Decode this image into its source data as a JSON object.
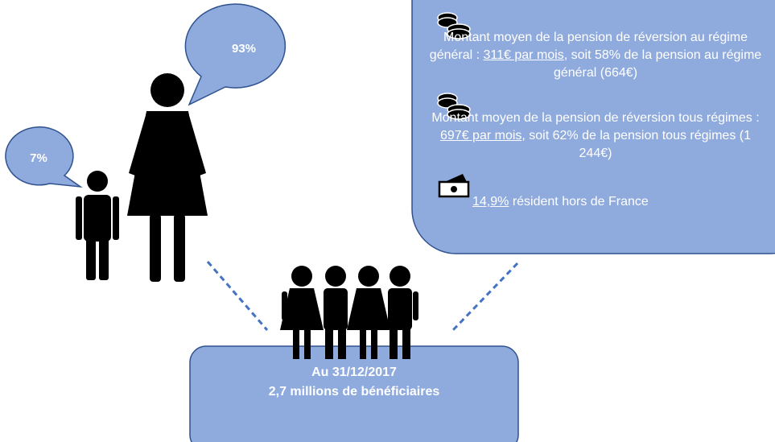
{
  "bubbles": [
    {
      "label": "93%"
    },
    {
      "label": "7%"
    }
  ],
  "info": {
    "items": [
      {
        "parts": [
          {
            "text": "Montant moyen de la pension de réversion au régime général : "
          },
          {
            "text": "311€ par mois",
            "underline": true
          },
          {
            "text": ", soit 58% de la pension au régime général (664€)"
          }
        ]
      },
      {
        "parts": [
          {
            "text": "Montant moyen de la pension de réversion tous régimes : "
          },
          {
            "text": "697€ par mois",
            "underline": true
          },
          {
            "text": ", soit 62% de la pension tous régimes (1 244€)"
          }
        ]
      },
      {
        "parts": [
          {
            "text": "14,9%",
            "underline": true
          },
          {
            "text": " résident hors de France"
          }
        ]
      }
    ]
  },
  "summary": {
    "date": "Au 31/12/2017",
    "count": "2,7 millions de bénéficiaires"
  }
}
